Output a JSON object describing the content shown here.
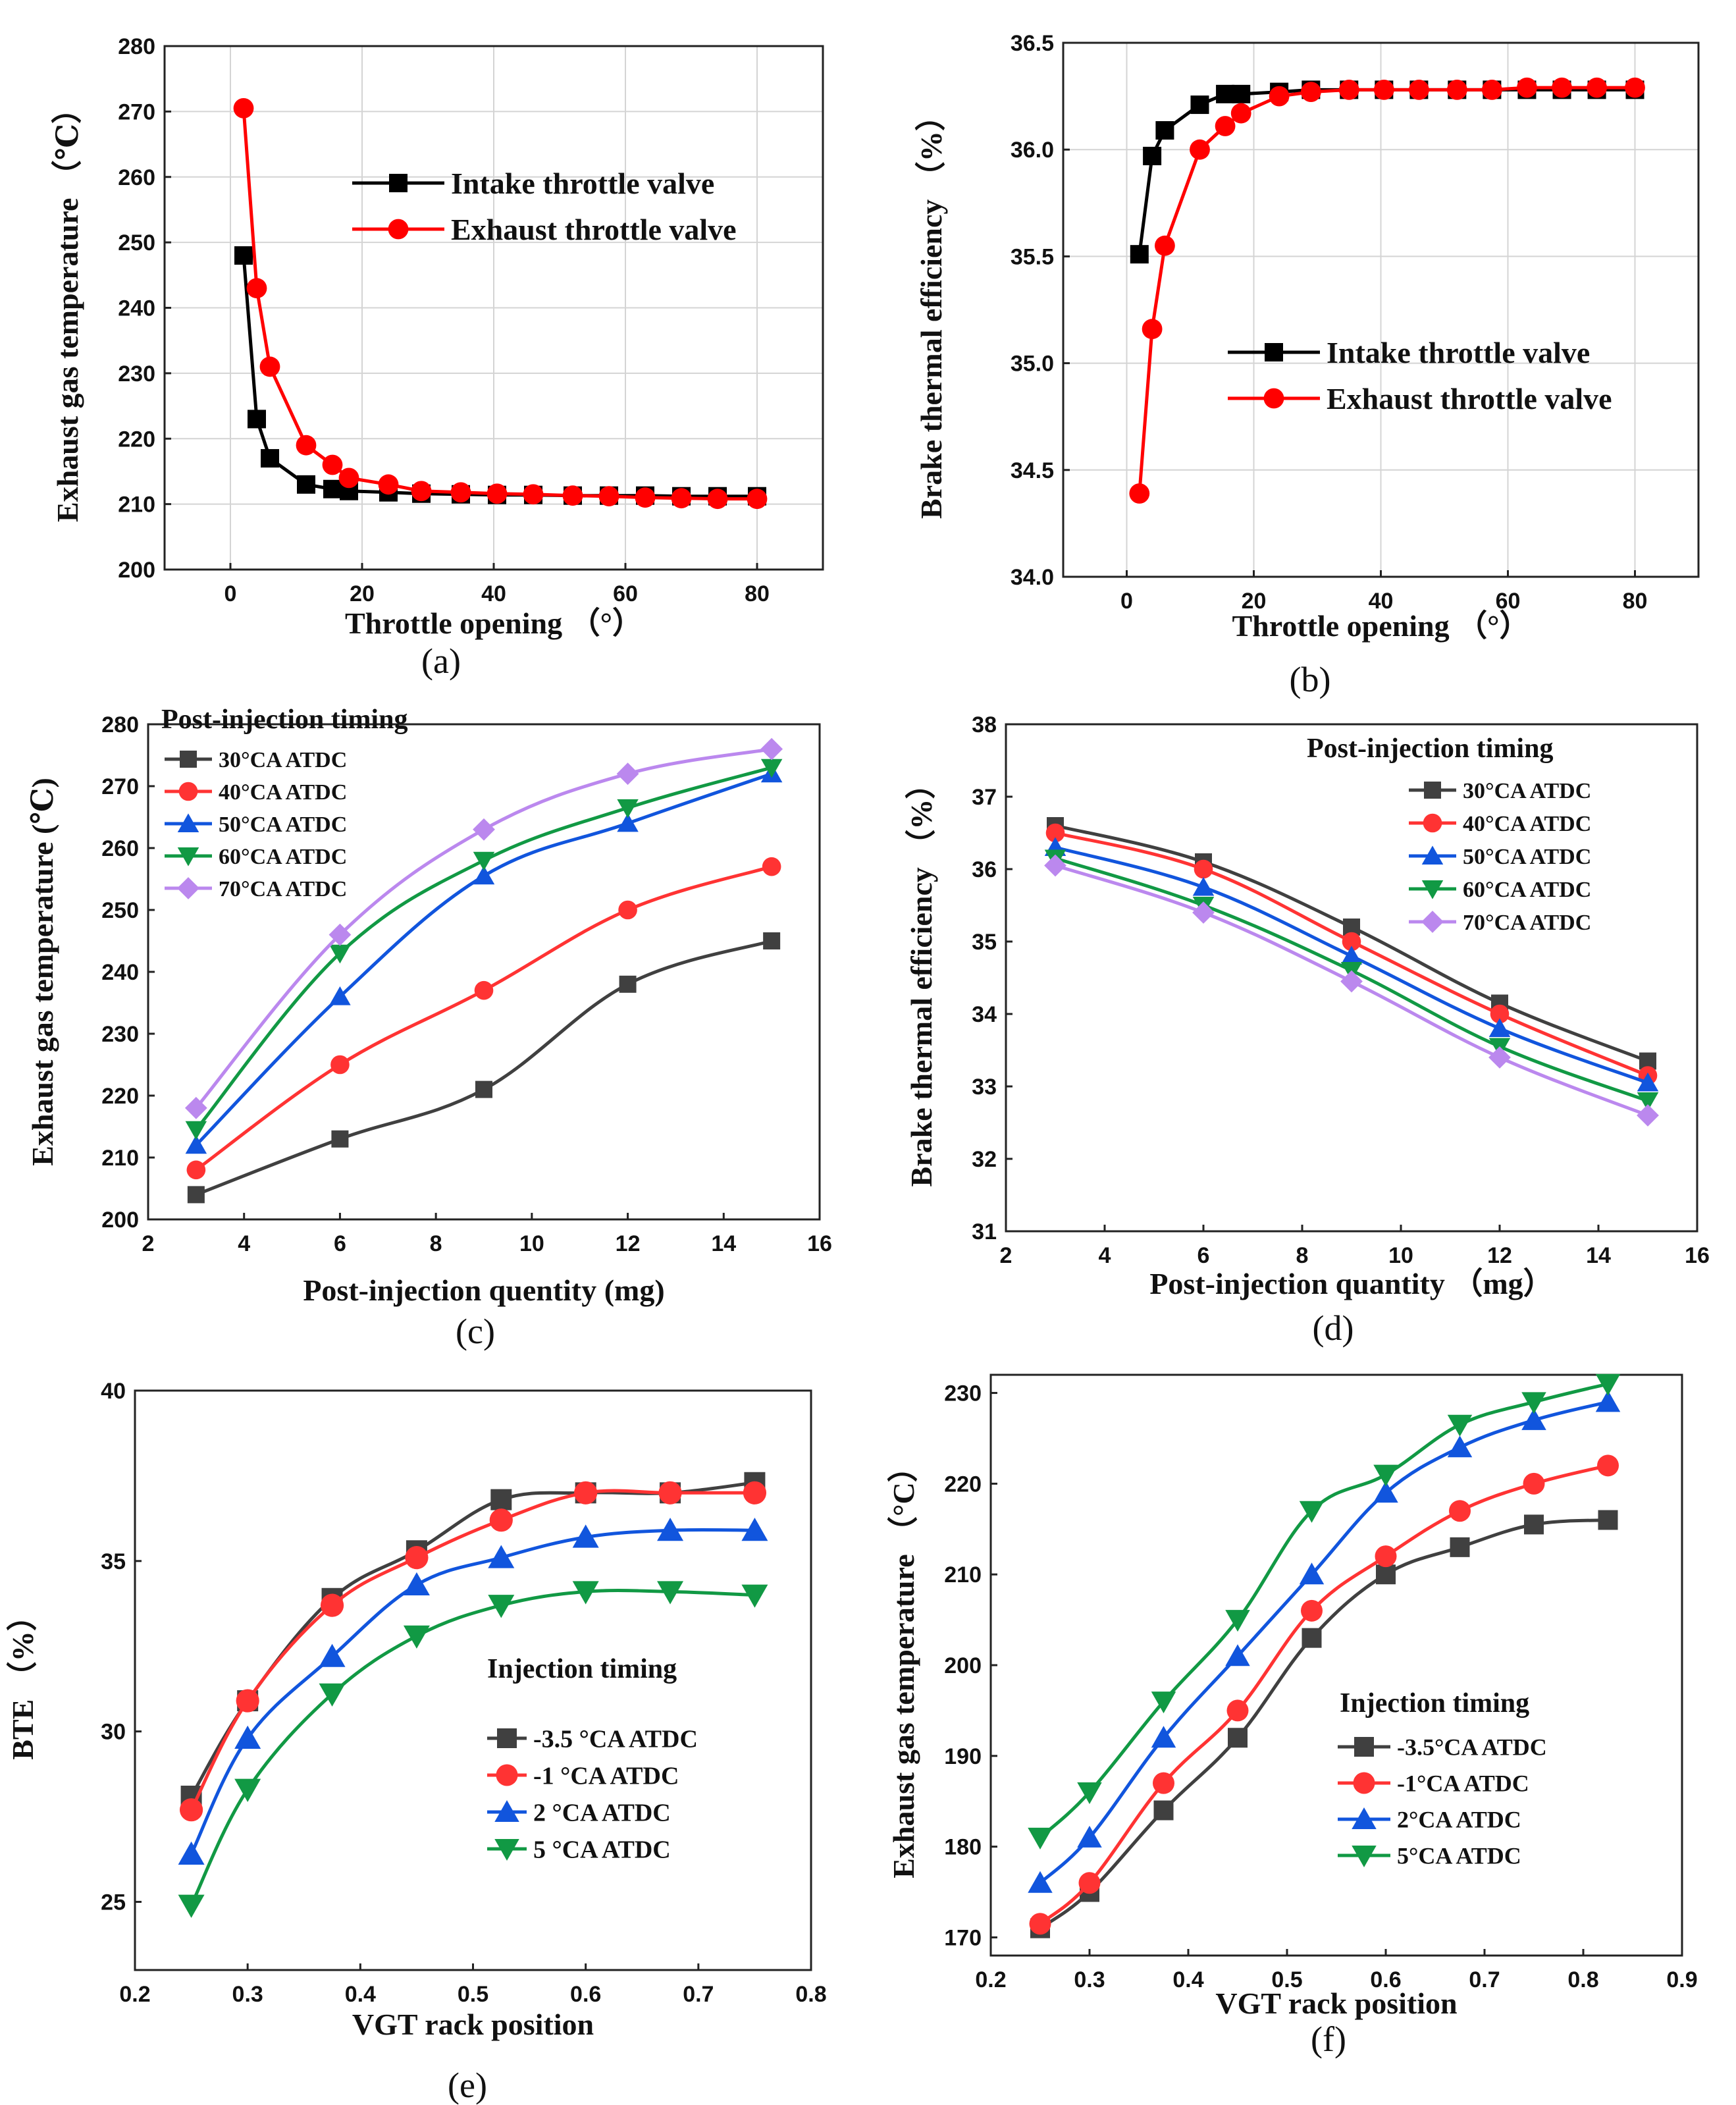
{
  "figure": {
    "labels": [
      "(a)",
      "(b)",
      "(c)",
      "(d)",
      "(e)",
      "(f)"
    ]
  },
  "chart_data": [
    {
      "id": "a",
      "type": "line",
      "panel_label": "(a)",
      "xlabel": "Throttle opening （°）",
      "ylabel": "Exhaust gas temperature （℃）",
      "xlim": [
        -10,
        90
      ],
      "ylim": [
        200,
        280
      ],
      "xticks": [
        0,
        20,
        40,
        60,
        80
      ],
      "yticks": [
        200,
        210,
        220,
        230,
        240,
        250,
        260,
        270,
        280
      ],
      "grid": true,
      "legend_position": "upper-right",
      "series": [
        {
          "name": "Intake throttle valve",
          "color": "#000000",
          "marker": "square",
          "x": [
            2,
            4,
            6,
            11.5,
            15.5,
            18,
            24,
            29,
            35,
            40.5,
            46,
            52,
            57.5,
            63,
            68.5,
            74,
            80
          ],
          "y": [
            248,
            223,
            217,
            213,
            212.3,
            212,
            211.8,
            211.6,
            211.5,
            211.4,
            211.4,
            211.3,
            211.3,
            211.3,
            211.2,
            211.2,
            211.2
          ]
        },
        {
          "name": "Exhaust throttle valve",
          "color": "#ff0000",
          "marker": "circle",
          "x": [
            2,
            4,
            6,
            11.5,
            15.5,
            18,
            24,
            29,
            35,
            40.5,
            46,
            52,
            57.5,
            63,
            68.5,
            74,
            80
          ],
          "y": [
            270.5,
            243,
            231,
            219,
            216,
            214,
            213,
            212,
            211.8,
            211.6,
            211.5,
            211.3,
            211.2,
            211,
            210.9,
            210.8,
            210.8
          ]
        }
      ]
    },
    {
      "id": "b",
      "type": "line",
      "panel_label": "(b)",
      "xlabel": "Throttle opening （°）",
      "ylabel": "Brake thermal efficiency （%）",
      "xlim": [
        -10,
        90
      ],
      "ylim": [
        34.0,
        36.5
      ],
      "xticks": [
        0,
        20,
        40,
        60,
        80
      ],
      "yticks": [
        34.0,
        34.5,
        35.0,
        35.5,
        36.0,
        36.5
      ],
      "grid": true,
      "legend_position": "lower-right",
      "series": [
        {
          "name": "Intake throttle valve",
          "color": "#000000",
          "marker": "square",
          "x": [
            2,
            4,
            6,
            11.5,
            15.5,
            18,
            24,
            29,
            35,
            40.5,
            46,
            52,
            57.5,
            63,
            68.5,
            74,
            80
          ],
          "y": [
            35.51,
            35.97,
            36.09,
            36.21,
            36.26,
            36.26,
            36.27,
            36.28,
            36.28,
            36.28,
            36.28,
            36.28,
            36.28,
            36.28,
            36.28,
            36.28,
            36.28
          ]
        },
        {
          "name": "Exhaust throttle valve",
          "color": "#ff0000",
          "marker": "circle",
          "x": [
            2,
            4,
            6,
            11.5,
            15.5,
            18,
            24,
            29,
            35,
            40.5,
            46,
            52,
            57.5,
            63,
            68.5,
            74,
            80
          ],
          "y": [
            34.39,
            35.16,
            35.55,
            36.0,
            36.11,
            36.17,
            36.25,
            36.27,
            36.28,
            36.28,
            36.28,
            36.28,
            36.28,
            36.29,
            36.29,
            36.29,
            36.29
          ]
        }
      ]
    },
    {
      "id": "c",
      "type": "line",
      "panel_label": "(c)",
      "xlabel": "Post-injection quentity (mg)",
      "ylabel": "Exhaust gas temperature (℃)",
      "xlim": [
        2,
        16
      ],
      "ylim": [
        200,
        280
      ],
      "xticks": [
        2,
        4,
        6,
        8,
        10,
        12,
        14,
        16
      ],
      "yticks": [
        200,
        210,
        220,
        230,
        240,
        250,
        260,
        270,
        280
      ],
      "grid": false,
      "legend_title": "Post-injection timing",
      "legend_position": "upper-left",
      "x": [
        3,
        6,
        9,
        12,
        15
      ],
      "series": [
        {
          "name": "30°CA ATDC",
          "color": "#404040",
          "marker": "square",
          "values": [
            204,
            213,
            221,
            238,
            245
          ]
        },
        {
          "name": "40°CA ATDC",
          "color": "#ff3333",
          "marker": "circle",
          "values": [
            208,
            225,
            237,
            250,
            257
          ]
        },
        {
          "name": "50°CA ATDC",
          "color": "#1155dd",
          "marker": "triangle-up",
          "values": [
            212,
            236,
            255.5,
            264,
            272
          ]
        },
        {
          "name": "60°CA ATDC",
          "color": "#119944",
          "marker": "triangle-down",
          "values": [
            214.5,
            243,
            258,
            266.5,
            273
          ]
        },
        {
          "name": "70°CA ATDC",
          "color": "#bb88ee",
          "marker": "diamond",
          "values": [
            218,
            246,
            263,
            272,
            276
          ]
        }
      ]
    },
    {
      "id": "d",
      "type": "line",
      "panel_label": "(d)",
      "xlabel": "Post-injection quantity （mg）",
      "ylabel": "Brake thermal efficiency （%）",
      "xlim": [
        2,
        16
      ],
      "ylim": [
        31,
        38
      ],
      "xticks": [
        2,
        4,
        6,
        8,
        10,
        12,
        14,
        16
      ],
      "yticks": [
        31,
        32,
        33,
        34,
        35,
        36,
        37,
        38
      ],
      "grid": false,
      "legend_title": "Post-injection timing",
      "legend_position": "upper-right",
      "x": [
        3,
        6,
        9,
        12,
        15
      ],
      "series": [
        {
          "name": "30°CA ATDC",
          "color": "#404040",
          "marker": "square",
          "values": [
            36.6,
            36.1,
            35.2,
            34.15,
            33.35
          ]
        },
        {
          "name": "40°CA ATDC",
          "color": "#ff3333",
          "marker": "circle",
          "values": [
            36.5,
            36.0,
            35.0,
            34.0,
            33.15
          ]
        },
        {
          "name": "50°CA ATDC",
          "color": "#1155dd",
          "marker": "triangle-up",
          "values": [
            36.3,
            35.75,
            34.8,
            33.8,
            33.05
          ]
        },
        {
          "name": "60°CA ATDC",
          "color": "#119944",
          "marker": "triangle-down",
          "values": [
            36.15,
            35.5,
            34.6,
            33.55,
            32.8
          ]
        },
        {
          "name": "70°CA ATDC",
          "color": "#bb88ee",
          "marker": "diamond",
          "values": [
            36.05,
            35.4,
            34.45,
            33.4,
            32.6
          ]
        }
      ]
    },
    {
      "id": "e",
      "type": "line",
      "panel_label": "(e)",
      "xlabel": "VGT rack position",
      "ylabel": "BTE （%）",
      "xlim": [
        0.2,
        0.8
      ],
      "ylim": [
        23,
        40
      ],
      "xticks": [
        0.2,
        0.3,
        0.4,
        0.5,
        0.6,
        0.7,
        0.8
      ],
      "yticks": [
        25,
        30,
        35,
        40
      ],
      "grid": false,
      "legend_title": "Injection timing",
      "legend_position": "lower-right",
      "x": [
        0.25,
        0.3,
        0.375,
        0.45,
        0.525,
        0.6,
        0.675,
        0.75
      ],
      "series": [
        {
          "name": "-3.5 °CA ATDC",
          "color": "#404040",
          "marker": "square",
          "values": [
            28.1,
            30.9,
            33.9,
            35.3,
            36.8,
            37.0,
            37.0,
            37.3
          ]
        },
        {
          "name": "-1 °CA ATDC",
          "color": "#ff3333",
          "marker": "circle",
          "values": [
            27.7,
            30.9,
            33.7,
            35.1,
            36.2,
            37.0,
            37.0,
            37.0
          ]
        },
        {
          "name": "2 °CA ATDC",
          "color": "#1155dd",
          "marker": "triangle-up",
          "values": [
            26.4,
            29.8,
            32.2,
            34.3,
            35.1,
            35.7,
            35.9,
            35.9
          ]
        },
        {
          "name": "5 °CA ATDC",
          "color": "#119944",
          "marker": "triangle-down",
          "values": [
            24.9,
            28.3,
            31.1,
            32.8,
            33.7,
            34.1,
            34.1,
            34.0
          ]
        }
      ]
    },
    {
      "id": "f",
      "type": "line",
      "panel_label": "(f)",
      "xlabel": "VGT rack position",
      "ylabel": "Exhaust gas temperature （°C）",
      "xlim": [
        0.2,
        0.9
      ],
      "ylim": [
        168,
        232
      ],
      "xticks": [
        0.2,
        0.3,
        0.4,
        0.5,
        0.6,
        0.7,
        0.8,
        0.9
      ],
      "yticks": [
        170,
        180,
        190,
        200,
        210,
        220,
        230
      ],
      "grid": false,
      "legend_title": "Injection timing",
      "legend_position": "lower-right",
      "x": [
        0.25,
        0.3,
        0.375,
        0.45,
        0.525,
        0.6,
        0.675,
        0.75,
        0.825
      ],
      "series": [
        {
          "name": "-3.5°CA ATDC",
          "color": "#404040",
          "marker": "square",
          "values": [
            171,
            175,
            184,
            192,
            203,
            210,
            213,
            215.5,
            216
          ]
        },
        {
          "name": "-1°CA ATDC",
          "color": "#ff3333",
          "marker": "circle",
          "values": [
            171.5,
            176,
            187,
            195,
            206,
            212,
            217,
            220,
            222
          ]
        },
        {
          "name": "2°CA ATDC",
          "color": "#1155dd",
          "marker": "triangle-up",
          "values": [
            176,
            181,
            192,
            201,
            210,
            219,
            224,
            227,
            229
          ]
        },
        {
          "name": "5°CA ATDC",
          "color": "#119944",
          "marker": "triangle-down",
          "values": [
            181,
            186,
            196,
            205,
            217,
            221,
            226.5,
            229,
            231
          ]
        }
      ]
    }
  ]
}
